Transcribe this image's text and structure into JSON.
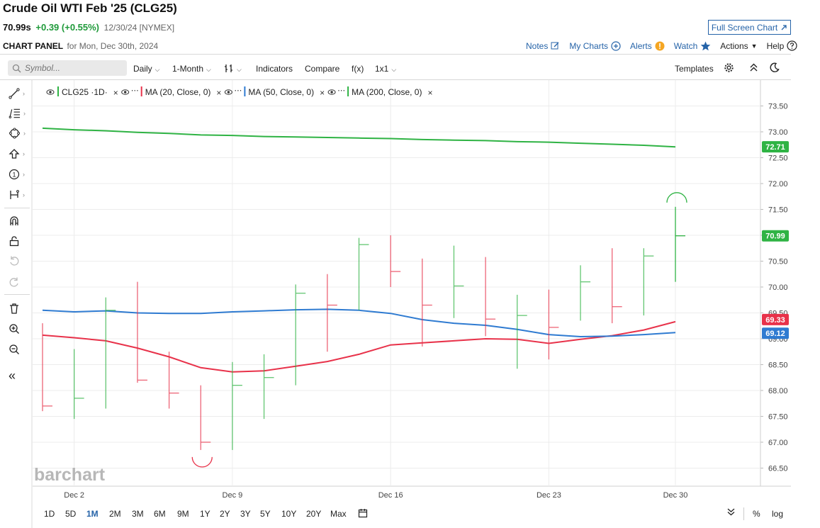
{
  "header": {
    "title": "Crude Oil WTI Feb '25 (CLG25)",
    "last": "70.99s",
    "change": "+0.39 (+0.55%)",
    "meta": "12/30/24 [NYMEX]",
    "full_screen_label": "Full Screen Chart",
    "panel_label": "CHART PANEL",
    "panel_date": "for Mon, Dec 30th, 2024"
  },
  "top_links": {
    "notes": "Notes",
    "my_charts": "My Charts",
    "alerts": "Alerts",
    "watch": "Watch",
    "actions": "Actions",
    "help": "Help"
  },
  "toolbar": {
    "symbol_placeholder": "Symbol...",
    "interval": "Daily",
    "range": "1-Month",
    "indicators": "Indicators",
    "compare": "Compare",
    "fx": "f(x)",
    "layout": "1x1",
    "templates": "Templates"
  },
  "legend": [
    {
      "label": "CLG25 ·1D·",
      "color": "#2fb344"
    },
    {
      "label": "MA (20, Close, 0)",
      "color": "#e8324a"
    },
    {
      "label": "MA (50, Close, 0)",
      "color": "#2f7bd1"
    },
    {
      "label": "MA (200, Close, 0)",
      "color": "#2fb344"
    }
  ],
  "watermark": "barchart",
  "bottom_ranges": [
    "1D",
    "5D",
    "1M",
    "2M",
    "3M",
    "6M",
    "9M",
    "1Y",
    "2Y",
    "3Y",
    "5Y",
    "10Y",
    "20Y",
    "Max"
  ],
  "active_range": "1M",
  "bottom_right": {
    "pct": "%",
    "log": "log"
  },
  "colors": {
    "up": "#2fb344",
    "down": "#e8324a",
    "ma20": "#e8324a",
    "ma50": "#2f7bd1",
    "ma200": "#2fb344",
    "link": "#2563a8"
  },
  "chart_data": {
    "type": "ohlc",
    "x_ticks": [
      "Dec 2",
      "Dec 9",
      "Dec 16",
      "Dec 23",
      "Dec 30"
    ],
    "y_ticks": [
      73.5,
      73.0,
      72.5,
      72.0,
      71.5,
      71.0,
      70.5,
      70.0,
      69.5,
      69.0,
      68.5,
      68.0,
      67.5,
      67.0,
      66.5
    ],
    "ylim": [
      66.15,
      74.0
    ],
    "dates": [
      "11/29",
      "12/2",
      "12/3",
      "12/4",
      "12/5",
      "12/6",
      "12/9",
      "12/10",
      "12/11",
      "12/12",
      "12/13",
      "12/16",
      "12/17",
      "12/18",
      "12/19",
      "12/20",
      "12/23",
      "12/24",
      "12/26",
      "12/27",
      "12/30"
    ],
    "bars": [
      {
        "high": 69.3,
        "low": 67.6,
        "close": 67.7,
        "dir": "down"
      },
      {
        "high": 68.8,
        "low": 67.45,
        "close": 67.85,
        "dir": "up"
      },
      {
        "high": 69.8,
        "low": 67.65,
        "close": 69.55,
        "dir": "up"
      },
      {
        "high": 70.1,
        "low": 68.15,
        "close": 68.2,
        "dir": "down"
      },
      {
        "high": 68.75,
        "low": 67.65,
        "close": 67.95,
        "dir": "down"
      },
      {
        "high": 68.1,
        "low": 66.85,
        "close": 67.0,
        "dir": "down"
      },
      {
        "high": 68.55,
        "low": 66.85,
        "close": 68.1,
        "dir": "up"
      },
      {
        "high": 68.7,
        "low": 67.45,
        "close": 68.25,
        "dir": "up"
      },
      {
        "high": 70.05,
        "low": 68.1,
        "close": 69.88,
        "dir": "up"
      },
      {
        "high": 70.25,
        "low": 68.75,
        "close": 69.65,
        "dir": "down"
      },
      {
        "high": 70.95,
        "low": 69.55,
        "close": 70.82,
        "dir": "up"
      },
      {
        "high": 71.0,
        "low": 70.0,
        "close": 70.3,
        "dir": "down"
      },
      {
        "high": 70.55,
        "low": 68.85,
        "close": 69.65,
        "dir": "down"
      },
      {
        "high": 70.8,
        "low": 69.4,
        "close": 70.02,
        "dir": "up"
      },
      {
        "high": 70.58,
        "low": 69.05,
        "close": 69.38,
        "dir": "down"
      },
      {
        "high": 69.85,
        "low": 68.42,
        "close": 69.45,
        "dir": "up"
      },
      {
        "high": 69.95,
        "low": 68.6,
        "close": 69.22,
        "dir": "down"
      },
      {
        "high": 70.42,
        "low": 69.35,
        "close": 70.1,
        "dir": "up"
      },
      {
        "high": 70.75,
        "low": 69.3,
        "close": 69.62,
        "dir": "down"
      },
      {
        "high": 70.75,
        "low": 69.45,
        "close": 70.6,
        "dir": "up"
      },
      {
        "high": 71.55,
        "low": 70.1,
        "close": 70.99,
        "dir": "up"
      }
    ],
    "series": [
      {
        "name": "MA (20, Close, 0)",
        "values": [
          69.07,
          69.02,
          68.96,
          68.82,
          68.65,
          68.44,
          68.36,
          68.38,
          68.47,
          68.56,
          68.7,
          68.88,
          68.92,
          68.96,
          69.0,
          68.99,
          68.91,
          68.99,
          69.06,
          69.17,
          69.33
        ]
      },
      {
        "name": "MA (50, Close, 0)",
        "values": [
          69.55,
          69.52,
          69.54,
          69.5,
          69.49,
          69.49,
          69.52,
          69.54,
          69.56,
          69.57,
          69.55,
          69.49,
          69.37,
          69.3,
          69.26,
          69.18,
          69.08,
          69.04,
          69.05,
          69.08,
          69.12
        ]
      },
      {
        "name": "MA (200, Close, 0)",
        "values": [
          73.07,
          73.04,
          73.02,
          72.99,
          72.97,
          72.94,
          72.93,
          72.91,
          72.9,
          72.89,
          72.88,
          72.87,
          72.85,
          72.84,
          72.83,
          72.81,
          72.8,
          72.78,
          72.76,
          72.74,
          72.71
        ]
      }
    ],
    "price_labels": [
      {
        "text": "72.71",
        "value": 72.71,
        "color": "#2fb344"
      },
      {
        "text": "70.99",
        "value": 70.99,
        "color": "#2fb344"
      },
      {
        "text": "69.33",
        "value": 69.33,
        "color": "#e8324a"
      },
      {
        "text": "69.12",
        "value": 69.12,
        "color": "#2f7bd1"
      }
    ],
    "markers": [
      {
        "type": "period-low",
        "bar": 5,
        "value": 66.85
      },
      {
        "type": "period-high",
        "bar": 20,
        "value": 71.55
      }
    ],
    "grid": true
  }
}
